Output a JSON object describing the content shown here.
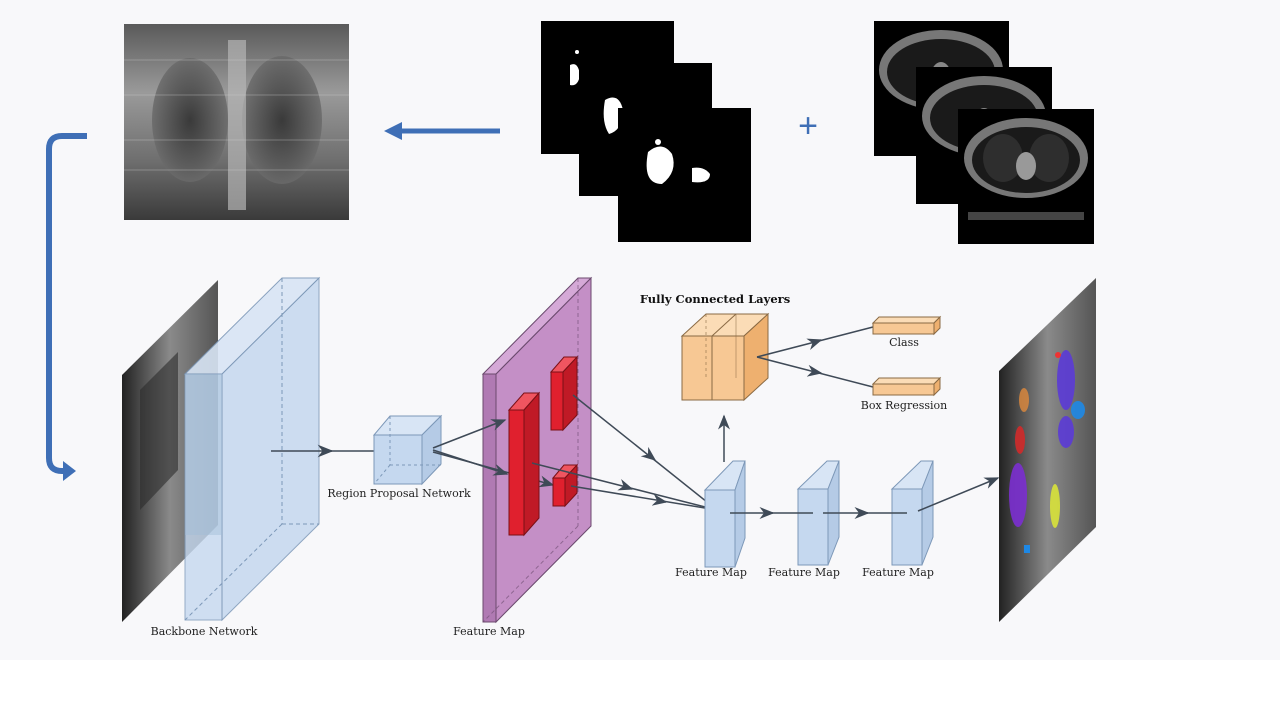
{
  "diagram": {
    "labels": {
      "backbone": "Backbone Network",
      "rpn": "Region Proposal Network",
      "feature_map_main": "Feature Map",
      "fc_layers": "Fully Connected Layers",
      "class": "Class",
      "box_regression": "Box Regression",
      "feature_map_1": "Feature Map",
      "feature_map_2": "Feature Map",
      "feature_map_3": "Feature Map"
    },
    "plus_sign": "+",
    "colors": {
      "arrow_blue": "#3f6fb6",
      "block_blue": "#c5d8ef",
      "block_purple": "#c48fc6",
      "roi_red": "#e0202e",
      "fc_orange": "#f7c894",
      "connector": "#3f4a57"
    }
  }
}
